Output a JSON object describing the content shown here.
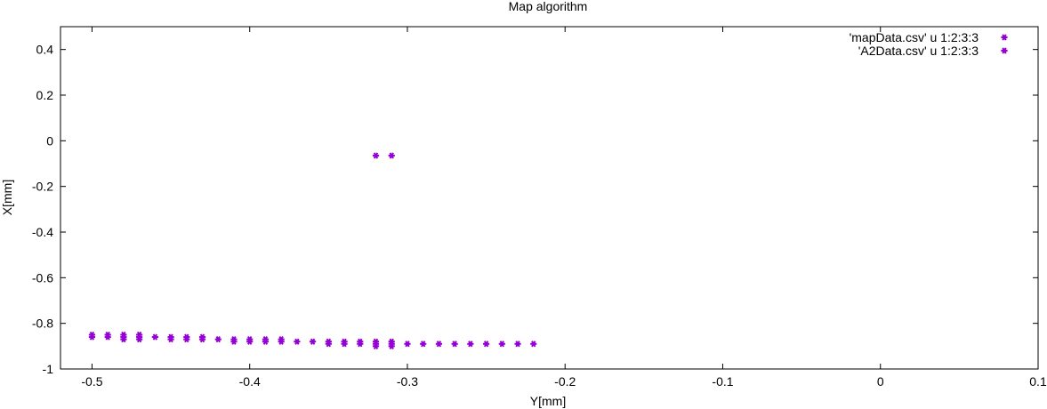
{
  "chart_data": {
    "type": "scatter",
    "title": "Map algorithm",
    "xlabel": "Y[mm]",
    "ylabel": "X[mm]",
    "xlim": [
      -0.52,
      0.1
    ],
    "ylim": [
      -1,
      0.5
    ],
    "x_ticks": [
      {
        "value": -0.5,
        "label": "-0.5"
      },
      {
        "value": -0.4,
        "label": "-0.4"
      },
      {
        "value": -0.3,
        "label": "-0.3"
      },
      {
        "value": -0.2,
        "label": "-0.2"
      },
      {
        "value": -0.1,
        "label": "-0.1"
      },
      {
        "value": 0,
        "label": "0"
      },
      {
        "value": 0.1,
        "label": "0.1"
      }
    ],
    "y_ticks": [
      {
        "value": 0.4,
        "label": "0.4"
      },
      {
        "value": 0.2,
        "label": "0.2"
      },
      {
        "value": 0,
        "label": "0"
      },
      {
        "value": -0.2,
        "label": "-0.2"
      },
      {
        "value": -0.4,
        "label": "-0.4"
      },
      {
        "value": -0.6,
        "label": "-0.6"
      },
      {
        "value": -0.8,
        "label": "-0.8"
      },
      {
        "value": -1,
        "label": "-1"
      }
    ],
    "grid": false,
    "legend_position": "top-right",
    "series": [
      {
        "name": "'mapData.csv' u 1:2:3:3",
        "color": "#9400d3",
        "marker": "star",
        "points": [
          [
            -0.5,
            -0.85
          ],
          [
            -0.5,
            -0.86
          ],
          [
            -0.49,
            -0.85
          ],
          [
            -0.49,
            -0.86
          ],
          [
            -0.48,
            -0.85
          ],
          [
            -0.48,
            -0.86
          ],
          [
            -0.48,
            -0.87
          ],
          [
            -0.47,
            -0.85
          ],
          [
            -0.47,
            -0.86
          ],
          [
            -0.47,
            -0.87
          ],
          [
            -0.46,
            -0.86
          ],
          [
            -0.45,
            -0.86
          ],
          [
            -0.45,
            -0.87
          ],
          [
            -0.44,
            -0.86
          ],
          [
            -0.44,
            -0.87
          ],
          [
            -0.43,
            -0.86
          ],
          [
            -0.43,
            -0.87
          ],
          [
            -0.42,
            -0.87
          ],
          [
            -0.41,
            -0.87
          ],
          [
            -0.41,
            -0.88
          ],
          [
            -0.4,
            -0.87
          ],
          [
            -0.4,
            -0.88
          ],
          [
            -0.39,
            -0.87
          ],
          [
            -0.39,
            -0.88
          ],
          [
            -0.38,
            -0.87
          ],
          [
            -0.38,
            -0.88
          ],
          [
            -0.37,
            -0.88
          ],
          [
            -0.36,
            -0.88
          ],
          [
            -0.35,
            -0.88
          ],
          [
            -0.35,
            -0.89
          ],
          [
            -0.34,
            -0.88
          ],
          [
            -0.34,
            -0.89
          ],
          [
            -0.33,
            -0.88
          ],
          [
            -0.33,
            -0.89
          ],
          [
            -0.32,
            -0.88
          ],
          [
            -0.32,
            -0.89
          ],
          [
            -0.32,
            -0.9
          ],
          [
            -0.31,
            -0.88
          ],
          [
            -0.31,
            -0.89
          ],
          [
            -0.31,
            -0.9
          ],
          [
            -0.3,
            -0.89
          ],
          [
            -0.29,
            -0.89
          ],
          [
            -0.28,
            -0.89
          ],
          [
            -0.27,
            -0.89
          ],
          [
            -0.26,
            -0.89
          ],
          [
            -0.25,
            -0.89
          ],
          [
            -0.24,
            -0.89
          ],
          [
            -0.23,
            -0.89
          ],
          [
            -0.22,
            -0.89
          ]
        ]
      },
      {
        "name": "'A2Data.csv' u 1:2:3:3",
        "color": "#9400d3",
        "marker": "star",
        "points": [
          [
            -0.32,
            -0.065
          ],
          [
            -0.31,
            -0.065
          ]
        ]
      }
    ]
  }
}
